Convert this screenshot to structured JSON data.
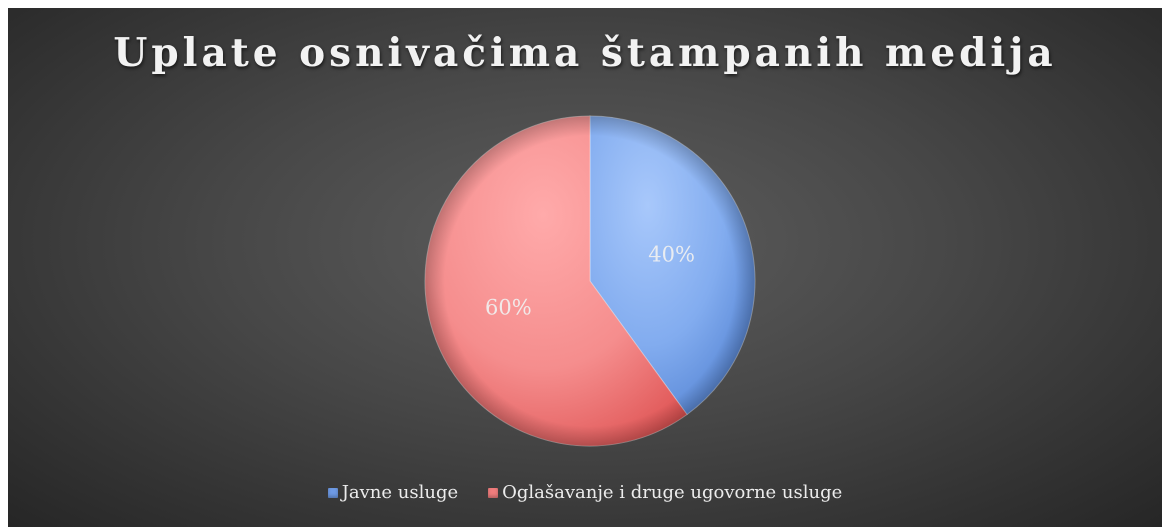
{
  "chart_data": {
    "type": "pie",
    "title": "Uplate osnivačima štampanih medija",
    "categories": [
      "Javne usluge",
      "Oglašavanje i druge ugovorne usluge"
    ],
    "values": [
      40,
      60
    ],
    "labels": [
      "40%",
      "60%"
    ],
    "colors": [
      "#6e9ae4",
      "#f07d7d"
    ],
    "legend_position": "bottom"
  }
}
